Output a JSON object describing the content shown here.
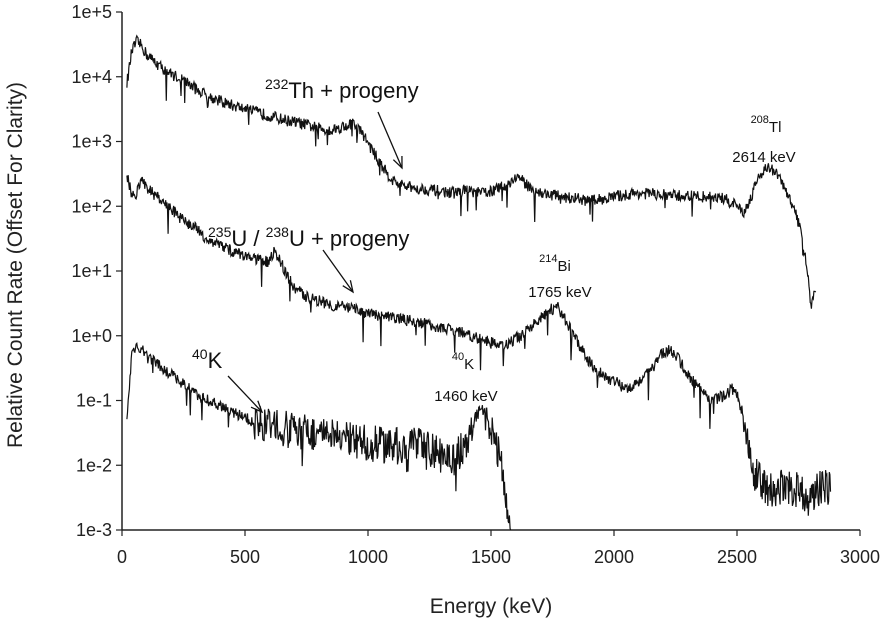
{
  "chart_data": {
    "type": "line",
    "title": "",
    "xlabel": "Energy (keV)",
    "ylabel": "Relative Count Rate (Offset For Clarity)",
    "xlim": [
      0,
      3000
    ],
    "ylim": [
      0.001,
      100000
    ],
    "yscale": "log",
    "grid": false,
    "x_ticks": [
      "0",
      "500",
      "1000",
      "1500",
      "2000",
      "2500",
      "3000"
    ],
    "y_ticks": [
      "1e-3",
      "1e-2",
      "1e-1",
      "1e+0",
      "1e+1",
      "1e+2",
      "1e+3",
      "1e+4",
      "1e+5"
    ],
    "line_color": "#111111",
    "series": [
      {
        "points": [
          [
            20,
            8000
          ],
          [
            40,
            25000
          ],
          [
            60,
            35000
          ],
          [
            80,
            30000
          ],
          [
            100,
            22000
          ],
          [
            150,
            15000
          ],
          [
            200,
            11000
          ],
          [
            250,
            9000
          ],
          [
            300,
            6500
          ],
          [
            350,
            5000
          ],
          [
            400,
            4200
          ],
          [
            450,
            3600
          ],
          [
            500,
            3200
          ],
          [
            550,
            2800
          ],
          [
            600,
            2500
          ],
          [
            650,
            2200
          ],
          [
            700,
            2000
          ],
          [
            750,
            1800
          ],
          [
            800,
            1600
          ],
          [
            850,
            1500
          ],
          [
            900,
            1700
          ],
          [
            940,
            1900
          ],
          [
            980,
            1300
          ],
          [
            1020,
            700
          ],
          [
            1060,
            400
          ],
          [
            1100,
            250
          ],
          [
            1150,
            200
          ],
          [
            1200,
            190
          ],
          [
            1250,
            180
          ],
          [
            1300,
            170
          ],
          [
            1350,
            160
          ],
          [
            1400,
            180
          ],
          [
            1450,
            160
          ],
          [
            1500,
            170
          ],
          [
            1550,
            200
          ],
          [
            1580,
            240
          ],
          [
            1610,
            290
          ],
          [
            1640,
            220
          ],
          [
            1700,
            160
          ],
          [
            1750,
            150
          ],
          [
            1800,
            140
          ],
          [
            1850,
            130
          ],
          [
            1900,
            120
          ],
          [
            1950,
            130
          ],
          [
            2000,
            140
          ],
          [
            2050,
            150
          ],
          [
            2100,
            160
          ],
          [
            2150,
            155
          ],
          [
            2200,
            150
          ],
          [
            2250,
            145
          ],
          [
            2300,
            145
          ],
          [
            2350,
            140
          ],
          [
            2400,
            140
          ],
          [
            2450,
            130
          ],
          [
            2500,
            100
          ],
          [
            2530,
            80
          ],
          [
            2560,
            150
          ],
          [
            2590,
            300
          ],
          [
            2620,
            400
          ],
          [
            2650,
            350
          ],
          [
            2680,
            250
          ],
          [
            2700,
            160
          ],
          [
            2730,
            100
          ],
          [
            2760,
            40
          ],
          [
            2790,
            8
          ],
          [
            2800,
            3
          ],
          [
            2820,
            5
          ]
        ]
      },
      {
        "points": [
          [
            20,
            300
          ],
          [
            40,
            150
          ],
          [
            60,
            160
          ],
          [
            80,
            250
          ],
          [
            100,
            200
          ],
          [
            150,
            130
          ],
          [
            200,
            90
          ],
          [
            250,
            60
          ],
          [
            300,
            45
          ],
          [
            350,
            30
          ],
          [
            400,
            25
          ],
          [
            450,
            20
          ],
          [
            500,
            17
          ],
          [
            550,
            15
          ],
          [
            600,
            14
          ],
          [
            620,
            20
          ],
          [
            640,
            16
          ],
          [
            660,
            10
          ],
          [
            700,
            5.5
          ],
          [
            750,
            4
          ],
          [
            800,
            3.5
          ],
          [
            850,
            3
          ],
          [
            900,
            2.8
          ],
          [
            950,
            2.5
          ],
          [
            1000,
            2.2
          ],
          [
            1050,
            2
          ],
          [
            1100,
            1.9
          ],
          [
            1150,
            1.8
          ],
          [
            1200,
            1.6
          ],
          [
            1250,
            1.5
          ],
          [
            1300,
            1.3
          ],
          [
            1350,
            1.2
          ],
          [
            1400,
            1.1
          ],
          [
            1450,
            0.9
          ],
          [
            1500,
            0.8
          ],
          [
            1550,
            0.7
          ],
          [
            1600,
            0.9
          ],
          [
            1650,
            1.2
          ],
          [
            1700,
            1.8
          ],
          [
            1740,
            2.5
          ],
          [
            1770,
            2.8
          ],
          [
            1800,
            1.8
          ],
          [
            1850,
            0.8
          ],
          [
            1900,
            0.4
          ],
          [
            1950,
            0.25
          ],
          [
            2000,
            0.2
          ],
          [
            2050,
            0.15
          ],
          [
            2100,
            0.2
          ],
          [
            2150,
            0.3
          ],
          [
            2200,
            0.55
          ],
          [
            2230,
            0.6
          ],
          [
            2260,
            0.45
          ],
          [
            2300,
            0.25
          ],
          [
            2350,
            0.15
          ],
          [
            2400,
            0.1
          ],
          [
            2450,
            0.12
          ],
          [
            2480,
            0.15
          ],
          [
            2500,
            0.13
          ],
          [
            2530,
            0.05
          ],
          [
            2560,
            0.01
          ],
          [
            2600,
            0.005
          ],
          [
            2650,
            0.004
          ],
          [
            2700,
            0.005
          ],
          [
            2750,
            0.004
          ],
          [
            2800,
            0.003
          ],
          [
            2850,
            0.005
          ],
          [
            2880,
            0.004
          ]
        ]
      },
      {
        "points": [
          [
            20,
            0.06
          ],
          [
            40,
            0.5
          ],
          [
            60,
            0.7
          ],
          [
            80,
            0.6
          ],
          [
            100,
            0.5
          ],
          [
            150,
            0.35
          ],
          [
            200,
            0.25
          ],
          [
            250,
            0.18
          ],
          [
            300,
            0.13
          ],
          [
            350,
            0.1
          ],
          [
            400,
            0.08
          ],
          [
            450,
            0.065
          ],
          [
            500,
            0.055
          ],
          [
            550,
            0.045
          ],
          [
            600,
            0.04
          ],
          [
            700,
            0.035
          ],
          [
            800,
            0.03
          ],
          [
            900,
            0.025
          ],
          [
            1000,
            0.022
          ],
          [
            1100,
            0.02
          ],
          [
            1200,
            0.02
          ],
          [
            1250,
            0.018
          ],
          [
            1300,
            0.014
          ],
          [
            1350,
            0.012
          ],
          [
            1400,
            0.025
          ],
          [
            1430,
            0.05
          ],
          [
            1460,
            0.075
          ],
          [
            1480,
            0.07
          ],
          [
            1500,
            0.04
          ],
          [
            1530,
            0.015
          ],
          [
            1560,
            0.004
          ],
          [
            1580,
            0.001
          ]
        ]
      }
    ],
    "annotations": [
      {
        "sup": "232",
        "text": "Th + progeny"
      },
      {
        "sup": "235",
        "text": "U / ",
        "sup2": "238",
        "text2": "U + progeny"
      },
      {
        "sup": "40",
        "text": "K"
      },
      {
        "sup": "208",
        "text": "Tl",
        "line2": "2614 keV"
      },
      {
        "sup": "214",
        "text": "Bi",
        "line2": "1765 keV"
      },
      {
        "sup": "40",
        "text": "K",
        "line2": "1460 keV"
      }
    ]
  }
}
